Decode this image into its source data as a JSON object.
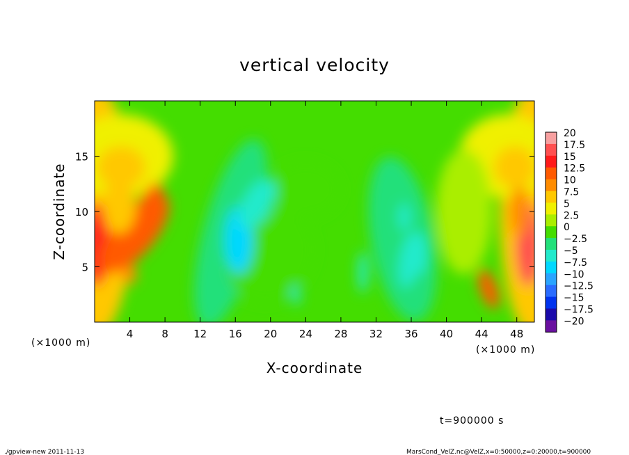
{
  "chart_data": {
    "type": "heatmap",
    "title": "vertical velocity",
    "xlabel": "X-coordinate",
    "ylabel": "Z-coordinate",
    "x_unit": "(×1000 m)",
    "y_unit": "(×1000 m)",
    "xlim": [
      0,
      50
    ],
    "ylim": [
      0,
      20
    ],
    "x_ticks": [
      4,
      8,
      12,
      16,
      20,
      24,
      28,
      32,
      36,
      40,
      44,
      48
    ],
    "y_ticks": [
      5,
      10,
      15
    ],
    "colorbar": {
      "levels": [
        20,
        17.5,
        15,
        12.5,
        10,
        7.5,
        5,
        2.5,
        0,
        -2.5,
        -5,
        -7.5,
        -10,
        -12.5,
        -15,
        -17.5,
        -20
      ],
      "labels": [
        "20",
        "17.5",
        "15",
        "12.5",
        "10",
        "7.5",
        "5",
        "2.5",
        "0",
        "−2.5",
        "−5",
        "−7.5",
        "−10",
        "−12.5",
        "−15",
        "−17.5",
        "−20"
      ],
      "colors": [
        "#f7a0a0",
        "#ff5050",
        "#ff1a1a",
        "#ff5a00",
        "#ff8c00",
        "#ffc800",
        "#f0f000",
        "#aaee00",
        "#44dd00",
        "#22e07a",
        "#22eacc",
        "#00d8ff",
        "#2aa4ff",
        "#2a6cff",
        "#0033ee",
        "#1a0aaa",
        "#6a10a0"
      ]
    },
    "features": [
      {
        "x": 0.2,
        "z": 7,
        "value": 14
      },
      {
        "x": 4.5,
        "z": 8,
        "value": 11
      },
      {
        "x": 4.0,
        "z": 4.3,
        "value": 9
      },
      {
        "x": 6.3,
        "z": 10.7,
        "value": 10
      },
      {
        "x": 2.8,
        "z": 10.5,
        "value": 7
      },
      {
        "x": 3.0,
        "z": 14,
        "value": 5
      },
      {
        "x": 16.4,
        "z": 7.4,
        "value": -8
      },
      {
        "x": 18.5,
        "z": 10.7,
        "value": -6
      },
      {
        "x": 22.9,
        "z": 2.4,
        "value": -6
      },
      {
        "x": 30.5,
        "z": 4.5,
        "value": -6
      },
      {
        "x": 35.8,
        "z": 5.6,
        "value": -7
      },
      {
        "x": 35.2,
        "z": 9.5,
        "value": -6
      },
      {
        "x": 37.0,
        "z": 6.2,
        "value": -6
      },
      {
        "x": 44.8,
        "z": 3.0,
        "value": 12
      },
      {
        "x": 49.3,
        "z": 7,
        "value": 15
      },
      {
        "x": 48.3,
        "z": 10,
        "value": 9
      },
      {
        "x": 47.8,
        "z": 14,
        "value": 5
      }
    ]
  },
  "annotations": {
    "time": "t=900000 s",
    "footer_left": "./gpview-new  2011-11-13",
    "footer_right": "MarsCond_VelZ.nc@VelZ,x=0:50000,z=0:20000,t=900000"
  }
}
